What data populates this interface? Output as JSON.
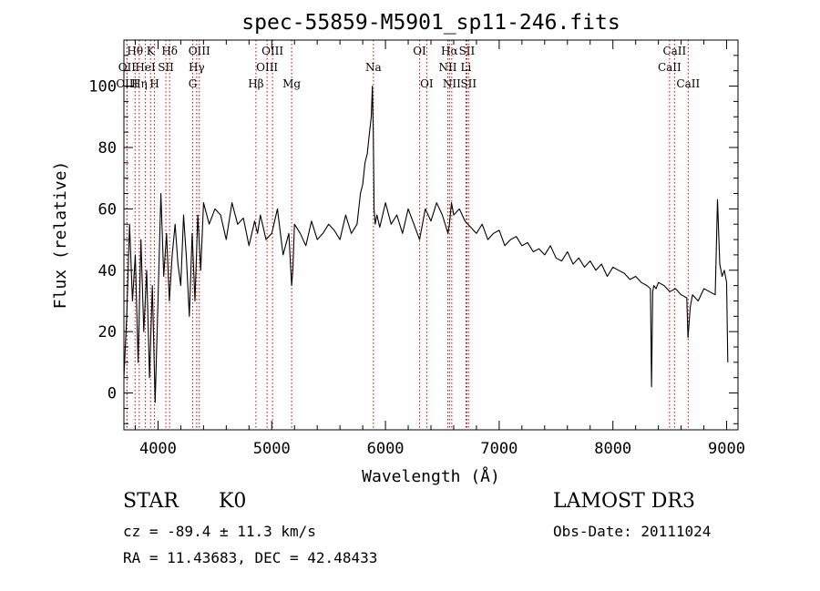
{
  "chart_data": {
    "type": "line",
    "title": "spec-55859-M5901_sp11-246.fits",
    "xlabel": "Wavelength (Å)",
    "ylabel": "Flux (relative)",
    "xlim": [
      3700,
      9100
    ],
    "ylim": [
      -12,
      115
    ],
    "xticks": [
      4000,
      5000,
      6000,
      7000,
      8000,
      9000
    ],
    "yticks": [
      0,
      20,
      40,
      60,
      80,
      100
    ],
    "x_tick_labels": [
      "4000",
      "5000",
      "6000",
      "7000",
      "8000",
      "9000"
    ],
    "y_tick_labels": [
      "0",
      "20",
      "40",
      "60",
      "80",
      "100"
    ],
    "series": [
      {
        "name": "spectrum",
        "x": [
          3700,
          3725,
          3750,
          3775,
          3800,
          3825,
          3850,
          3875,
          3900,
          3925,
          3950,
          3975,
          4000,
          4025,
          4050,
          4075,
          4100,
          4125,
          4150,
          4175,
          4200,
          4225,
          4250,
          4275,
          4300,
          4325,
          4350,
          4375,
          4400,
          4450,
          4500,
          4550,
          4600,
          4650,
          4700,
          4750,
          4800,
          4850,
          4862,
          4875,
          4900,
          4950,
          5000,
          5050,
          5100,
          5150,
          5175,
          5185,
          5200,
          5250,
          5300,
          5350,
          5400,
          5450,
          5500,
          5550,
          5600,
          5650,
          5700,
          5750,
          5780,
          5800,
          5820,
          5840,
          5860,
          5875,
          5885,
          5893,
          5900,
          5910,
          5925,
          5950,
          6000,
          6050,
          6100,
          6150,
          6200,
          6250,
          6300,
          6350,
          6400,
          6450,
          6500,
          6550,
          6563,
          6580,
          6600,
          6650,
          6700,
          6750,
          6800,
          6850,
          6900,
          6950,
          7000,
          7050,
          7100,
          7150,
          7200,
          7250,
          7300,
          7350,
          7400,
          7450,
          7500,
          7550,
          7600,
          7650,
          7700,
          7750,
          7800,
          7850,
          7900,
          7950,
          8000,
          8050,
          8100,
          8150,
          8200,
          8250,
          8300,
          8330,
          8340,
          8350,
          8360,
          8380,
          8400,
          8450,
          8500,
          8550,
          8600,
          8650,
          8660,
          8680,
          8700,
          8750,
          8800,
          8850,
          8900,
          8920,
          8940,
          8960,
          8980,
          9000,
          9010
        ],
        "values": [
          5,
          25,
          55,
          30,
          45,
          10,
          50,
          20,
          40,
          5,
          35,
          -3,
          30,
          65,
          38,
          52,
          30,
          45,
          55,
          42,
          35,
          58,
          44,
          25,
          52,
          30,
          58,
          40,
          62,
          55,
          60,
          58,
          50,
          62,
          55,
          57,
          48,
          56,
          54,
          52,
          58,
          50,
          52,
          60,
          45,
          52,
          35,
          40,
          55,
          52,
          48,
          56,
          50,
          52,
          55,
          53,
          50,
          58,
          52,
          55,
          65,
          68,
          75,
          78,
          85,
          90,
          100,
          85,
          60,
          55,
          58,
          54,
          62,
          55,
          58,
          52,
          60,
          55,
          50,
          60,
          56,
          62,
          58,
          52,
          55,
          62,
          58,
          60,
          56,
          54,
          52,
          55,
          50,
          52,
          53,
          48,
          50,
          51,
          48,
          49,
          46,
          47,
          45,
          48,
          44,
          43,
          46,
          42,
          44,
          41,
          43,
          40,
          42,
          38,
          41,
          40,
          39,
          37,
          38,
          36,
          35,
          34,
          2,
          33,
          35,
          34,
          36,
          35,
          33,
          34,
          32,
          31,
          18,
          28,
          32,
          30,
          34,
          33,
          32,
          63,
          42,
          38,
          40,
          36,
          10
        ]
      }
    ],
    "line_markers": [
      {
        "label": "Hθ",
        "x": 3798,
        "row": 0
      },
      {
        "label": "OII",
        "x": 3727,
        "row": 1
      },
      {
        "label": "OIII",
        "x": 3727,
        "row": 2
      },
      {
        "label": "K",
        "x": 3934,
        "row": 0
      },
      {
        "label": "HeI",
        "x": 3889,
        "row": 1
      },
      {
        "label": "Hη",
        "x": 3835,
        "row": 2
      },
      {
        "label": "SII",
        "x": 4069,
        "row": 1
      },
      {
        "label": "H",
        "x": 3969,
        "row": 2
      },
      {
        "label": "Hδ",
        "x": 4102,
        "row": 0
      },
      {
        "label": "OIII",
        "x": 4363,
        "row": 0
      },
      {
        "label": "Hγ",
        "x": 4340,
        "row": 1
      },
      {
        "label": "G",
        "x": 4305,
        "row": 2
      },
      {
        "label": "Hβ",
        "x": 4861,
        "row": 2
      },
      {
        "label": "OIII",
        "x": 4959,
        "row": 1
      },
      {
        "label": "OIII",
        "x": 5007,
        "row": 0
      },
      {
        "label": "Mg",
        "x": 5175,
        "row": 2
      },
      {
        "label": "Na",
        "x": 5894,
        "row": 1
      },
      {
        "label": "OI",
        "x": 6300,
        "row": 0
      },
      {
        "label": "OI",
        "x": 6363,
        "row": 2
      },
      {
        "label": "Hα",
        "x": 6563,
        "row": 0
      },
      {
        "label": "NII",
        "x": 6548,
        "row": 1
      },
      {
        "label": "NII",
        "x": 6583,
        "row": 2
      },
      {
        "label": "SII",
        "x": 6716,
        "row": 0
      },
      {
        "label": "Li",
        "x": 6708,
        "row": 1
      },
      {
        "label": "SII",
        "x": 6731,
        "row": 2
      },
      {
        "label": "CaII",
        "x": 8542,
        "row": 0
      },
      {
        "label": "CaII",
        "x": 8498,
        "row": 1
      },
      {
        "label": "CaII",
        "x": 8662,
        "row": 2
      }
    ],
    "grid": false
  },
  "info": {
    "object_type": "STAR",
    "object_class": "K0",
    "survey": "LAMOST DR3",
    "cz": "cz = -89.4 ± 11.3 km/s",
    "obs_date": "Obs-Date: 20111024",
    "radec": "RA =  11.43683, DEC =  42.48433"
  },
  "colors": {
    "line": "#000000",
    "marker": "#cc0000",
    "background": "#ffffff"
  }
}
